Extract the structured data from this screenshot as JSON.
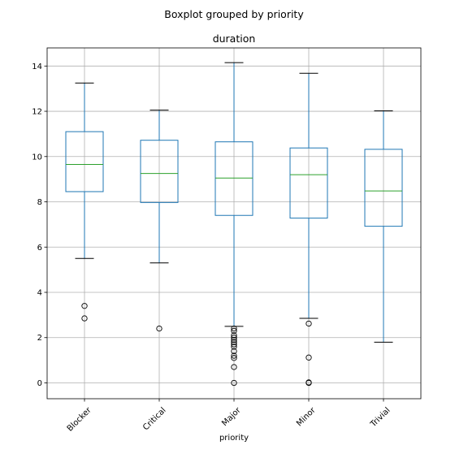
{
  "chart_data": {
    "type": "box",
    "suptitle": "Boxplot grouped by priority",
    "title": "duration",
    "xlabel": "priority",
    "ylabel": "",
    "ylim": [
      -0.7,
      14.8
    ],
    "yticks": [
      0,
      2,
      4,
      6,
      8,
      10,
      12,
      14
    ],
    "grid": true,
    "colors": {
      "box": "#1f77b4",
      "median": "#2ca02c",
      "whisker": "#1f77b4",
      "cap": "#000000",
      "flier": "#000000",
      "grid": "#b0b0b0",
      "axes": "#000000"
    },
    "categories": [
      "Blocker",
      "Critical",
      "Major",
      "Minor",
      "Trivial"
    ],
    "boxes": [
      {
        "category": "Blocker",
        "whisker_low": 5.5,
        "q1": 8.45,
        "median": 9.65,
        "q3": 11.1,
        "whisker_high": 13.25,
        "outliers": [
          3.4,
          2.85
        ]
      },
      {
        "category": "Critical",
        "whisker_low": 5.3,
        "q1": 7.97,
        "median": 9.25,
        "q3": 10.72,
        "whisker_high": 12.05,
        "outliers": [
          2.4
        ]
      },
      {
        "category": "Major",
        "whisker_low": 2.5,
        "q1": 7.4,
        "median": 9.05,
        "q3": 10.65,
        "whisker_high": 14.15,
        "outliers": [
          2.4,
          2.3,
          2.1,
          2.0,
          1.9,
          1.8,
          1.7,
          1.6,
          1.4,
          1.2,
          1.1,
          0.7,
          0.0
        ]
      },
      {
        "category": "Minor",
        "whisker_low": 2.85,
        "q1": 7.28,
        "median": 9.2,
        "q3": 10.38,
        "whisker_high": 13.68,
        "outliers": [
          2.62,
          1.12,
          0.02,
          0.0
        ]
      },
      {
        "category": "Trivial",
        "whisker_low": 1.8,
        "q1": 6.92,
        "median": 8.48,
        "q3": 10.32,
        "whisker_high": 12.02,
        "outliers": []
      }
    ]
  }
}
